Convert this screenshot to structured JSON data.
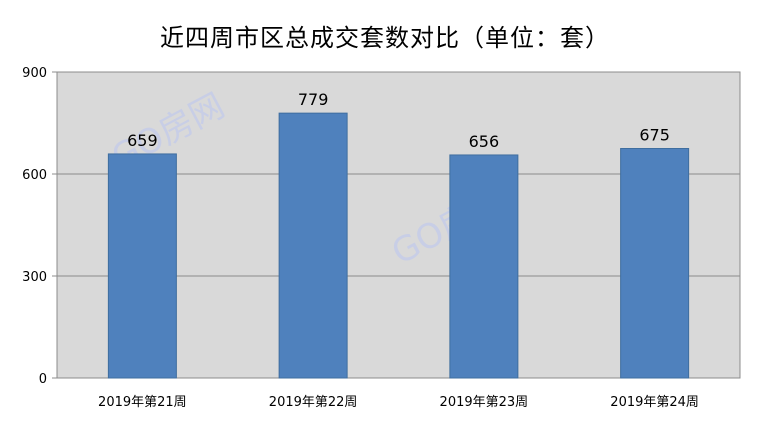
{
  "chart_data": {
    "type": "bar",
    "title": "近四周市区总成交套数对比（单位：套）",
    "categories": [
      "2019年第21周",
      "2019年第22周",
      "2019年第23周",
      "2019年第24周"
    ],
    "values": [
      659,
      779,
      656,
      675
    ],
    "ylim": [
      0,
      900
    ],
    "yticks": [
      0,
      300,
      600,
      900
    ],
    "grid": true,
    "bar_color": "#4f81bd",
    "plot_background": "#d9d9d9"
  },
  "watermark": {
    "text": "GO房网"
  }
}
